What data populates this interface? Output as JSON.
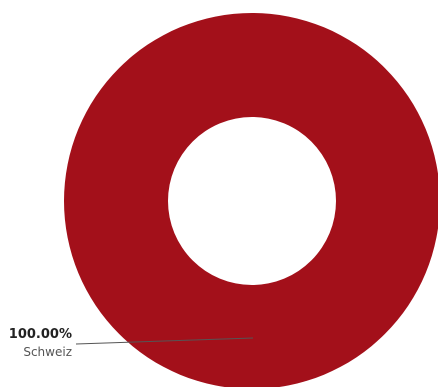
{
  "chart_data": {
    "type": "pie",
    "variant": "donut",
    "slices": [
      {
        "label": "Schweiz",
        "value": 100.0,
        "display": "100.00%",
        "color": "#a3101a"
      }
    ],
    "title": "",
    "legend": "none"
  },
  "colors": {
    "leader_line": "#555555",
    "background": "#ffffff"
  }
}
